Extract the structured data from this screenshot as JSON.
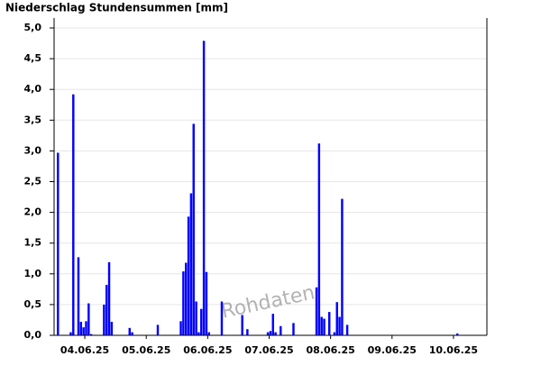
{
  "chart_data": {
    "type": "bar",
    "title": "Niederschlag Stundensummen [mm]",
    "watermark": "Rohdaten",
    "color": "#0000ff",
    "grid": true,
    "x": [
      1,
      6,
      7,
      9,
      10,
      11,
      12,
      13,
      14,
      19,
      20,
      21,
      22,
      29,
      30,
      40,
      49,
      50,
      51,
      52,
      53,
      54,
      55,
      56,
      57,
      58,
      59,
      60,
      65,
      73,
      75,
      83,
      84,
      85,
      86,
      88,
      93,
      102,
      103,
      104,
      105,
      107,
      109,
      110,
      111,
      112,
      114,
      157
    ],
    "values": [
      2.97,
      0.05,
      3.92,
      1.27,
      0.22,
      0.13,
      0.23,
      0.52,
      0.02,
      0.5,
      0.82,
      1.19,
      0.22,
      0.12,
      0.05,
      0.17,
      0.23,
      1.04,
      1.18,
      1.93,
      2.31,
      3.44,
      0.55,
      0.05,
      0.43,
      4.79,
      1.03,
      0.05,
      0.55,
      0.33,
      0.1,
      0.05,
      0.07,
      0.35,
      0.05,
      0.15,
      0.2,
      0.78,
      3.12,
      0.3,
      0.27,
      0.38,
      0.05,
      0.54,
      0.3,
      2.22,
      0.17,
      0.03
    ],
    "xlim": [
      0,
      168
    ],
    "xticks": [
      {
        "value": 12,
        "label": "04.06.25"
      },
      {
        "value": 36,
        "label": "05.06.25"
      },
      {
        "value": 60,
        "label": "06.06.25"
      },
      {
        "value": 84,
        "label": "07.06.25"
      },
      {
        "value": 108,
        "label": "08.06.25"
      },
      {
        "value": 132,
        "label": "09.06.25"
      },
      {
        "value": 156,
        "label": "10.06.25"
      }
    ],
    "ylim": [
      0,
      5.0
    ],
    "yticks": [
      {
        "value": 0,
        "label": "0,0"
      },
      {
        "value": 0.5,
        "label": "0,5"
      },
      {
        "value": 1,
        "label": "1,0"
      },
      {
        "value": 1.5,
        "label": "1,5"
      },
      {
        "value": 2,
        "label": "2,0"
      },
      {
        "value": 2.5,
        "label": "2,5"
      },
      {
        "value": 3,
        "label": "3,0"
      },
      {
        "value": 3.5,
        "label": "3,5"
      },
      {
        "value": 4,
        "label": "4,0"
      },
      {
        "value": 4.5,
        "label": "4,5"
      },
      {
        "value": 5,
        "label": "5,0"
      }
    ]
  }
}
